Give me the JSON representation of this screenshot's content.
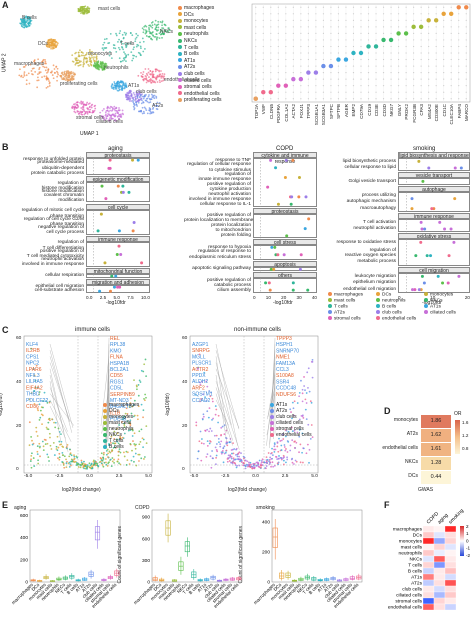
{
  "panels": {
    "A": "A",
    "B": "B",
    "C": "C",
    "D": "D",
    "E": "E",
    "F": "F"
  },
  "panel_a": {
    "umap_x": "UMAP 1",
    "umap_y": "UMAP 2",
    "cluster_labels": [
      {
        "text": "mast cells",
        "color": "#444"
      },
      {
        "text": "B cells",
        "color": "#444"
      },
      {
        "text": "NKCs",
        "color": "#444"
      },
      {
        "text": "DCs",
        "color": "#444"
      },
      {
        "text": "T cells",
        "color": "#444"
      },
      {
        "text": "macrophages",
        "color": "#444"
      },
      {
        "text": "monocytes",
        "color": "#444"
      },
      {
        "text": "neutrophils",
        "color": "#444"
      },
      {
        "text": "proliferating cells",
        "color": "#444"
      },
      {
        "text": "endothelial cells",
        "color": "#444"
      },
      {
        "text": "AT1s",
        "color": "#444"
      },
      {
        "text": "stromal cells",
        "color": "#444"
      },
      {
        "text": "club cells",
        "color": "#444"
      },
      {
        "text": "ciliated cells",
        "color": "#444"
      },
      {
        "text": "AT2s",
        "color": "#444"
      }
    ],
    "legend": [
      {
        "label": "macrophages",
        "color": "#f08a4b"
      },
      {
        "label": "DCs",
        "color": "#e8a33b"
      },
      {
        "label": "monocytes",
        "color": "#c7b23a"
      },
      {
        "label": "mast cells",
        "color": "#9cbc3a"
      },
      {
        "label": "neutrophils",
        "color": "#5cbf4a"
      },
      {
        "label": "NKCs",
        "color": "#38b86e"
      },
      {
        "label": "T cells",
        "color": "#2fb59a"
      },
      {
        "label": "B cells",
        "color": "#2eb3c2"
      },
      {
        "label": "AT1s",
        "color": "#3aa6e0"
      },
      {
        "label": "AT2s",
        "color": "#6b8fe8"
      },
      {
        "label": "club cells",
        "color": "#9c7ee8"
      },
      {
        "label": "ciliated cells",
        "color": "#c76fd8"
      },
      {
        "label": "stromal cells",
        "color": "#e060b8"
      },
      {
        "label": "endothelial cells",
        "color": "#f06a8c"
      },
      {
        "label": "proliferating cells",
        "color": "#e8a060"
      }
    ],
    "genes": [
      "TOP2A",
      "VWF",
      "CLDN5",
      "PDGFRA",
      "COL1A2",
      "ACTA2",
      "FOXJ1",
      "TPPP3",
      "SCGB1A1",
      "SCGB3A1",
      "SFTPC",
      "SFTPB",
      "AGER",
      "EMP2",
      "CD79A",
      "CD19",
      "CD3E",
      "CD3D",
      "NKG7",
      "GNLY",
      "PROK2",
      "FCGR3B",
      "CPA3",
      "MS4A2",
      "CD300E",
      "CD1C",
      "CLEC10A",
      "FABP4",
      "MARCO"
    ]
  },
  "panel_b": {
    "aging": {
      "title": "aging",
      "xlabel": "-log10fdr",
      "ticks": [
        "0.0",
        "2.5",
        "5.0",
        "7.5",
        "10.0"
      ],
      "groups": [
        {
          "name": "proteostasis",
          "terms": [
            "response to unfolded protein",
            "proteasome-mediated\nubiquitin-dependent\nprotein catabolic process"
          ]
        },
        {
          "name": "epigenetic modification",
          "terms": [
            "regulation of\nhistone modification",
            "histone modification",
            "covalent chromatin\nmodification"
          ]
        },
        {
          "name": "cell cycle",
          "terms": [
            "regulation of mitotic cell cycle\nphase transition",
            "regulation of cell cycle G2/M\nphase transition",
            "negative regulation of\ncell cycle process"
          ]
        },
        {
          "name": "immune response",
          "terms": [
            "regulation of\nT cell differentiation",
            "positive regulation of\nT cell mediated cytotoxicity",
            "neutrophil activation\ninvolved in immune response"
          ]
        },
        {
          "name": "mitochondrial function",
          "terms": [
            "cellular respiration"
          ]
        },
        {
          "name": "migration and adhesion",
          "terms": [
            "epithelial cell migration",
            "cell-substrate adhesion"
          ]
        }
      ]
    },
    "copd": {
      "title": "COPD",
      "xlabel": "-log10fdr",
      "ticks": [
        "0",
        "10",
        "20",
        "30",
        "40"
      ],
      "groups": [
        {
          "name": "cytokine and immune response",
          "terms": [
            "response to TNF",
            "regulation of cellular response\nto cytokine stimulus",
            "regulation of\ninnate immune response",
            "positive regulation of\ncytokine production",
            "neutrophil activation\ninvolved in immune response",
            "cellular response to IL-1"
          ]
        },
        {
          "name": "proteostasis",
          "terms": [
            "positive regulation of\nprotein localization to membrane",
            "protein localization\nto mitochondrion",
            "protein folding"
          ]
        },
        {
          "name": "cell stress",
          "terms": [
            "response to hypoxia",
            "regulation of response to\nendoplasmic reticulum stress"
          ]
        },
        {
          "name": "apoptosis",
          "terms": [
            "apoptotic signaling pathway"
          ]
        },
        {
          "name": "others",
          "terms": [
            "positive regulation of\ncatabolic process",
            "cilium assembly"
          ]
        }
      ]
    },
    "smoking": {
      "title": "smoking",
      "xlabel": "-log10fdr",
      "ticks": [
        "0",
        "10",
        "20"
      ],
      "groups": [
        {
          "name": "lipid biosynthesis and response",
          "terms": [
            "lipid biosynthetic process",
            "cellular response to lipid"
          ]
        },
        {
          "name": "vesicle transport",
          "terms": [
            "Golgi vesicle transport"
          ]
        },
        {
          "name": "autophage",
          "terms": [
            "process utilizing\nautophagic mechanism",
            "macroautophagy"
          ]
        },
        {
          "name": "immune response",
          "terms": [
            "T cell activation",
            "neutrophil activation"
          ]
        },
        {
          "name": "oxidative stress",
          "terms": [
            "response to oxidative stress",
            "regulation of\nreactive oxygen species\nmetabolic process"
          ]
        },
        {
          "name": "cell migration",
          "terms": [
            "leukocyte migration",
            "epithelium migration",
            "endothelial cell migration"
          ]
        }
      ]
    },
    "legend": [
      {
        "label": "macrophages",
        "color": "#f08a4b"
      },
      {
        "label": "DCs",
        "color": "#e8a33b"
      },
      {
        "label": "monocytes",
        "color": "#c7b23a"
      },
      {
        "label": "mast cells",
        "color": "#9cbc3a"
      },
      {
        "label": "neutrophils",
        "color": "#5cbf4a"
      },
      {
        "label": "NKCs",
        "color": "#38b86e"
      },
      {
        "label": "T cells",
        "color": "#2fb59a"
      },
      {
        "label": "B cells",
        "color": "#2eb3c2"
      },
      {
        "label": "AT1s",
        "color": "#3aa6e0"
      },
      {
        "label": "AT2s",
        "color": "#6b8fe8"
      },
      {
        "label": "club cells",
        "color": "#9c7ee8"
      },
      {
        "label": "ciliated cells",
        "color": "#c76fd8"
      },
      {
        "label": "stromal cells",
        "color": "#e060b8"
      },
      {
        "label": "endothelial cells",
        "color": "#f06a8c"
      }
    ]
  },
  "panel_c": {
    "immune_title": "immune cells",
    "nonimmune_title": "non-immune cells",
    "ylabel": "-log10(fdr)",
    "xlabel": "log2(fold change)",
    "immune_xticks": [
      "-5.0",
      "-2.5",
      "0.0",
      "2.5",
      "5.0"
    ],
    "nonimmune_xticks": [
      "-5.0",
      "-2.5",
      "0.0",
      "2.5",
      "5.0"
    ],
    "yticks": [
      "0",
      "20",
      "40",
      "60"
    ],
    "immune_up": [
      "REL",
      "RPL38",
      "KMO",
      "FLNA",
      "HSPA1B",
      "BCL2A1",
      "CD55",
      "RGS1",
      "CD5L",
      "SERPINB9",
      "MT-ND3",
      "B4GALT5",
      "IL1B",
      "PDE4B"
    ],
    "immune_down": [
      "KLF4",
      "IL2RB",
      "CPS1",
      "NPC2",
      "LPAR6",
      "NFIL3",
      "LILRA5",
      "EIF4A2",
      "THBD",
      "PDLCE22",
      "CD86"
    ],
    "nonimmune_up": [
      "TPPP3",
      "HSPH1",
      "SNRNP70",
      "NME1",
      "FAM13A",
      "CCL3",
      "S100A8",
      "SSR4",
      "CCDC48",
      "NDUFS6"
    ],
    "nonimmune_down": [
      "AZGP1",
      "SNRPG",
      "MGLL",
      "PLSCR1",
      "ACTR2",
      "PPDX",
      "ALDH2",
      "ARF2",
      "SQSTM1",
      "CCIAD2"
    ],
    "legend": [
      {
        "label": "macrophages",
        "color": "#f08a4b"
      },
      {
        "label": "DCs",
        "color": "#e8a33b"
      },
      {
        "label": "monocytes",
        "color": "#c7b23a"
      },
      {
        "label": "mast cells",
        "color": "#9cbc3a"
      },
      {
        "label": "neutrophils",
        "color": "#5cbf4a"
      },
      {
        "label": "NKCs",
        "color": "#38b86e"
      },
      {
        "label": "T cells",
        "color": "#2fb59a"
      },
      {
        "label": "B cells",
        "color": "#2eb3c2"
      }
    ],
    "legend2": [
      {
        "label": "AT1s",
        "color": "#3aa6e0"
      },
      {
        "label": "AT2s",
        "color": "#6b8fe8"
      },
      {
        "label": "club cells",
        "color": "#9c7ee8"
      },
      {
        "label": "ciliated cells",
        "color": "#c76fd8"
      },
      {
        "label": "stromal cells",
        "color": "#e060b8"
      },
      {
        "label": "endothelial cells",
        "color": "#f06a8c"
      }
    ]
  },
  "panel_d": {
    "xlabel": "GWAS",
    "legend_title": "OR",
    "legend_ticks": [
      "1.6",
      "1.2",
      "0.8"
    ],
    "rows": [
      {
        "label": "monocytes",
        "value": "1.86",
        "color": "#e07a5f"
      },
      {
        "label": "AT2s",
        "value": "1.62",
        "color": "#f0b080"
      },
      {
        "label": "endothelial cells",
        "value": "1.61",
        "color": "#f0b482"
      },
      {
        "label": "NKCs",
        "value": "1.28",
        "color": "#f7dba8"
      },
      {
        "label": "DCs",
        "value": "0.44",
        "color": "#fdf5d8"
      }
    ]
  },
  "panel_e": {
    "ylabel": "Count of significant genes",
    "categories": [
      "macrophages",
      "DCs",
      "monocytes",
      "mast cells",
      "neutrophils",
      "NKCs",
      "T cells",
      "B cells",
      "AT1s",
      "AT2s",
      "club cells",
      "ciliated cells",
      "stromal cells",
      "endothelial cells"
    ],
    "aging": {
      "title": "aging",
      "yticks": [
        "0",
        "200",
        "400",
        "600"
      ],
      "ymax": 650,
      "boxes": [
        [
          5,
          10,
          15,
          20,
          30
        ],
        [
          3,
          6,
          10,
          14,
          20
        ],
        [
          20,
          30,
          40,
          50,
          70
        ],
        [
          2,
          5,
          8,
          12,
          18
        ],
        [
          10,
          18,
          25,
          35,
          50
        ],
        [
          15,
          25,
          35,
          45,
          60
        ],
        [
          20,
          35,
          50,
          60,
          80
        ],
        [
          5,
          10,
          15,
          20,
          30
        ],
        [
          10,
          15,
          25,
          35,
          45
        ],
        [
          30,
          50,
          70,
          90,
          110
        ],
        [
          300,
          380,
          450,
          500,
          560
        ],
        [
          5,
          12,
          18,
          25,
          35
        ],
        [
          20,
          30,
          40,
          50,
          65
        ],
        [
          40,
          60,
          80,
          100,
          120
        ]
      ]
    },
    "copd": {
      "title": "COPD",
      "yticks": [
        "0",
        "300",
        "600",
        "900"
      ],
      "ymax": 1000,
      "boxes": [
        [
          10,
          20,
          40,
          60,
          90
        ],
        [
          5,
          15,
          25,
          40,
          60
        ],
        [
          550,
          650,
          750,
          850,
          950
        ],
        [
          5,
          10,
          20,
          30,
          40
        ],
        [
          100,
          160,
          220,
          280,
          350
        ],
        [
          350,
          420,
          500,
          560,
          620
        ],
        [
          30,
          60,
          100,
          140,
          180
        ],
        [
          5,
          15,
          25,
          35,
          50
        ],
        [
          10,
          20,
          30,
          45,
          60
        ],
        [
          20,
          40,
          60,
          80,
          100
        ],
        [
          5,
          10,
          18,
          25,
          35
        ],
        [
          10,
          20,
          30,
          40,
          55
        ],
        [
          15,
          25,
          40,
          55,
          70
        ],
        [
          20,
          30,
          45,
          60,
          80
        ]
      ]
    },
    "smoking": {
      "title": "smoking",
      "yticks": [
        "0",
        "200",
        "400"
      ],
      "ymax": 480,
      "boxes": [
        [
          150,
          230,
          300,
          360,
          420
        ],
        [
          10,
          25,
          40,
          60,
          80
        ],
        [
          15,
          30,
          45,
          60,
          75
        ],
        [
          2,
          5,
          8,
          12,
          18
        ],
        [
          5,
          10,
          18,
          25,
          35
        ],
        [
          10,
          20,
          30,
          40,
          55
        ],
        [
          5,
          12,
          20,
          30,
          40
        ],
        [
          3,
          8,
          12,
          18,
          25
        ],
        [
          5,
          10,
          15,
          22,
          30
        ],
        [
          8,
          15,
          22,
          30,
          40
        ],
        [
          3,
          6,
          10,
          14,
          20
        ],
        [
          5,
          10,
          15,
          22,
          30
        ],
        [
          10,
          18,
          25,
          35,
          45
        ],
        [
          12,
          20,
          30,
          40,
          55
        ]
      ]
    }
  },
  "panel_f": {
    "cols": [
      "COPD",
      "aging",
      "smoking"
    ],
    "rows": [
      "macrophages",
      "DCs",
      "monocytes",
      "mast cells",
      "neutrophils",
      "NKCs",
      "T cells",
      "B cells",
      "AT1s",
      "AT2s",
      "club cells",
      "ciliated cells",
      "stromal cells",
      "endothelial cells"
    ],
    "values": [
      [
        0.2,
        0.1,
        2
      ],
      [
        0.5,
        -0.3,
        0.3
      ],
      [
        2,
        -1,
        0.4
      ],
      [
        0.1,
        0.4,
        -0.3
      ],
      [
        0.5,
        -0.2,
        0.1
      ],
      [
        -0.3,
        1.5,
        0.2
      ],
      [
        0.4,
        -1.2,
        0.3
      ],
      [
        -0.5,
        0.2,
        0.6
      ],
      [
        1.2,
        0.2,
        -0.4
      ],
      [
        -0.6,
        0.3,
        1.6
      ],
      [
        0.2,
        -0.4,
        0.3
      ],
      [
        0.3,
        -0.8,
        0.5
      ],
      [
        -1.8,
        0.4,
        0.2
      ],
      [
        1.5,
        0.3,
        -0.5
      ]
    ],
    "legend_ticks": [
      "2",
      "1",
      "0",
      "-1",
      "-2"
    ]
  }
}
